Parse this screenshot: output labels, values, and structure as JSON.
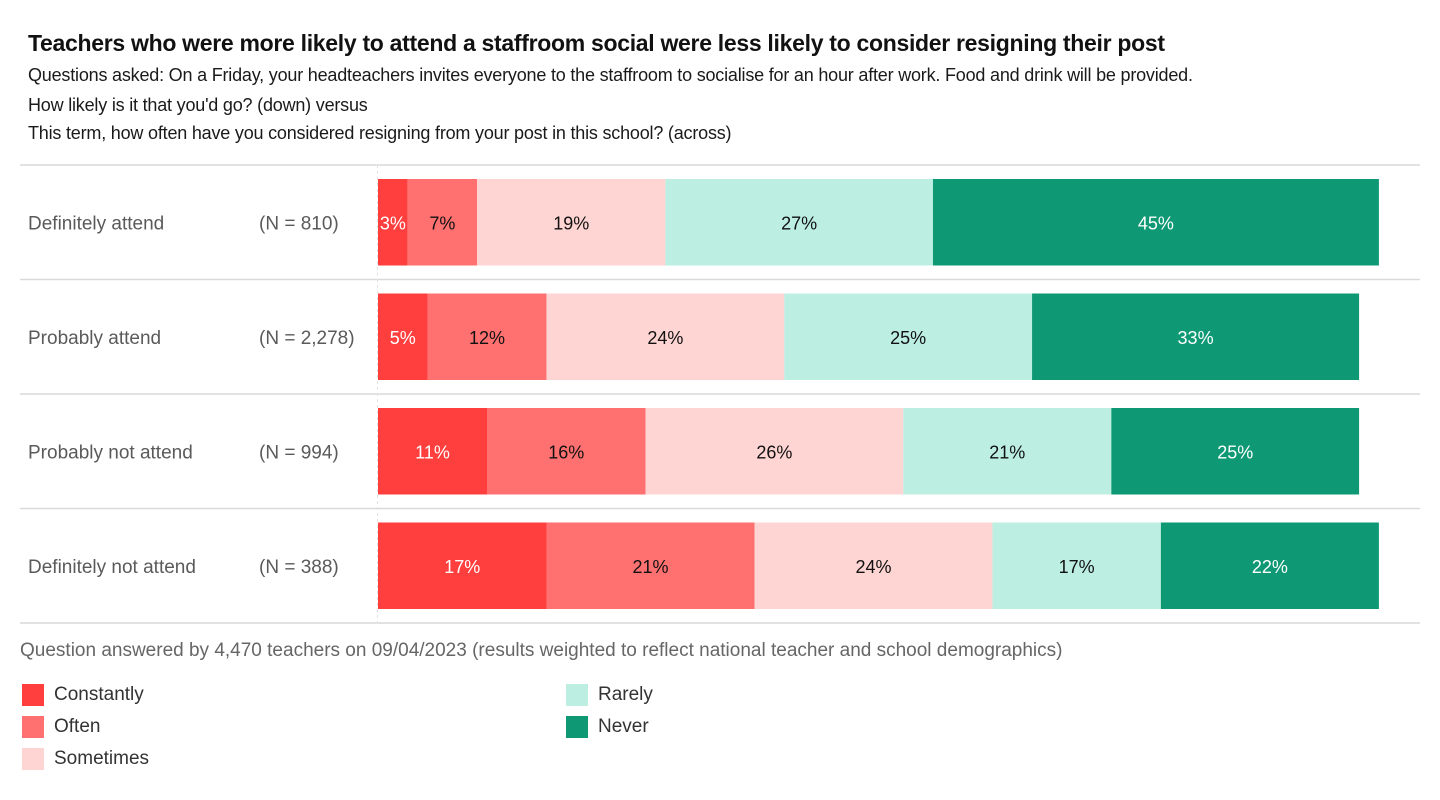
{
  "header": {
    "title": "Teachers who were more likely to attend a staffroom social were less likely to consider resigning their post",
    "subtitle_lines": [
      "Questions asked: On a Friday, your headteachers invites everyone to the staffroom to socialise for an hour after work. Food and drink will be provided.",
      "How likely is it that you'd go? (down) versus",
      "This term, how often have you considered resigning from your post in this school? (across)"
    ]
  },
  "chart_data": {
    "type": "bar",
    "orientation": "horizontal",
    "stacked": true,
    "normalized_to": 100,
    "title": "Teachers who were more likely to attend a staffroom social were less likely to consider resigning their post",
    "xlabel": "",
    "ylabel": "",
    "xlim": [
      0,
      100
    ],
    "categories": [
      "Definitely attend",
      "Probably attend",
      "Probably not attend",
      "Definitely not attend"
    ],
    "sample_sizes": [
      "(N = 810)",
      "(N = 2,278)",
      "(N = 994)",
      "(N = 388)"
    ],
    "series": [
      {
        "name": "Constantly",
        "color": "#ff3e3e",
        "label_color": "#ffffff",
        "values": [
          3,
          5,
          11,
          17
        ]
      },
      {
        "name": "Often",
        "color": "#ff7070",
        "label_color": "#111111",
        "values": [
          7,
          12,
          16,
          21
        ]
      },
      {
        "name": "Sometimes",
        "color": "#ffd5d3",
        "label_color": "#111111",
        "values": [
          19,
          24,
          26,
          24
        ]
      },
      {
        "name": "Rarely",
        "color": "#bcefe1",
        "label_color": "#111111",
        "values": [
          27,
          25,
          21,
          17
        ]
      },
      {
        "name": "Never",
        "color": "#0e9874",
        "label_color": "#ffffff",
        "values": [
          45,
          33,
          25,
          22
        ]
      }
    ],
    "legend_position": "bottom-left",
    "grid": false
  },
  "footnote": "Question answered by 4,470 teachers on 09/04/2023 (results weighted to reflect national teacher and school demographics)"
}
